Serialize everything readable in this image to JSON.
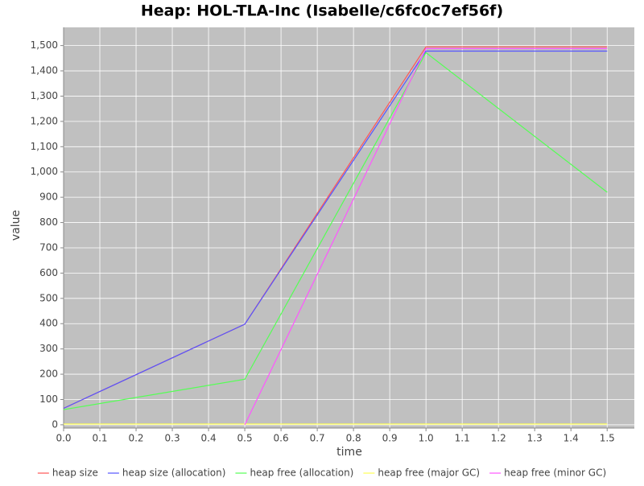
{
  "chart_data": {
    "type": "line",
    "title": "Heap: HOL-TLA-Inc (Isabelle/c6fc0c7ef56f)",
    "x_label": "time",
    "y_label": "value",
    "x": [
      0,
      0.5,
      1,
      1.5
    ],
    "series": [
      {
        "name": "heap size",
        "color": "#ff5555",
        "values": [
          65,
          398,
          1495,
          1495
        ]
      },
      {
        "name": "heap size (allocation)",
        "color": "#5555ff",
        "values": [
          65,
          398,
          1478,
          1478
        ]
      },
      {
        "name": "heap free (allocation)",
        "color": "#55ff55",
        "values": [
          60,
          180,
          1472,
          920
        ]
      },
      {
        "name": "heap free (major GC)",
        "color": "#ffff55",
        "values": [
          3,
          3,
          3,
          3
        ]
      },
      {
        "name": "heap free (minor GC)",
        "color": "#ff55ff",
        "values": [
          null,
          0,
          1488,
          1488
        ]
      }
    ],
    "xlim": [
      0,
      1.575
    ],
    "ylim": [
      -13,
      1572
    ],
    "xticks": [
      {
        "value": 0,
        "label": "0.0"
      },
      0.1,
      0.2,
      0.3,
      0.4,
      0.5,
      0.6,
      0.7,
      0.8,
      0.9,
      {
        "value": 1,
        "label": "1.0"
      },
      1.1,
      1.2,
      1.3,
      1.4,
      1.5
    ],
    "yticks": [
      0,
      100,
      200,
      300,
      400,
      500,
      600,
      700,
      800,
      900,
      {
        "value": 1000,
        "label": "1,000"
      },
      {
        "value": 1100,
        "label": "1,100"
      },
      {
        "value": 1200,
        "label": "1,200"
      },
      {
        "value": 1300,
        "label": "1,300"
      },
      {
        "value": 1400,
        "label": "1,400"
      },
      {
        "value": 1500,
        "label": "1,500"
      }
    ],
    "grid": true,
    "plot_background": "#c0c0c0",
    "legend": "bottom"
  }
}
